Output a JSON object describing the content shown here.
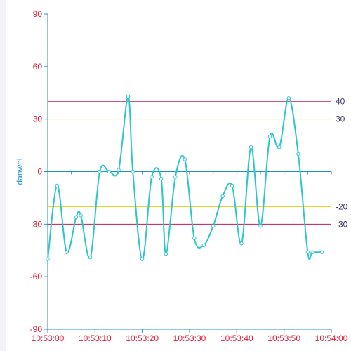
{
  "chart_data": {
    "type": "line",
    "title": "",
    "xlabel": "",
    "ylabel": "danwei",
    "x_range": [
      "10:53:00",
      "10:54:00"
    ],
    "x_ticks": [
      "10:53:00",
      "10:53:10",
      "10:53:20",
      "10:53:30",
      "10:53:40",
      "10:53:50",
      "10:54:00"
    ],
    "ylim": [
      -90,
      90
    ],
    "y_ticks": [
      -90,
      -60,
      -30,
      0,
      30,
      60,
      90
    ],
    "grid": false,
    "legend": "none",
    "series": [
      {
        "x": [
          "10:53:00",
          "10:53:02",
          "10:53:04",
          "10:53:06",
          "10:53:07",
          "10:53:09",
          "10:53:11",
          "10:53:13",
          "10:53:15",
          "10:53:17",
          "10:53:18",
          "10:53:20",
          "10:53:22",
          "10:53:24",
          "10:53:25",
          "10:53:27",
          "10:53:29",
          "10:53:31",
          "10:53:33",
          "10:53:35",
          "10:53:37",
          "10:53:39",
          "10:53:41",
          "10:53:43",
          "10:53:45",
          "10:53:47",
          "10:53:49",
          "10:53:51",
          "10:53:53",
          "10:53:55",
          "10:53:56",
          "10:53:58"
        ],
        "values": [
          -50,
          -8,
          -46,
          -26,
          -25,
          -49,
          0,
          0,
          1,
          43,
          0,
          -50,
          -3,
          -4,
          -47,
          -3,
          7,
          -38,
          -42,
          -31,
          -14,
          -8,
          -41,
          14,
          -31,
          20,
          14,
          42,
          10,
          -46,
          -46,
          -46
        ]
      }
    ],
    "reference_lines": [
      {
        "value": 40,
        "label": "40",
        "color": "#c2185b"
      },
      {
        "value": 30,
        "label": "30",
        "color": "#e6e600"
      },
      {
        "value": -20,
        "label": "-20",
        "color": "#e6d200"
      },
      {
        "value": -30,
        "label": "-30",
        "color": "#c2185b"
      }
    ],
    "colors": {
      "series": "#2ec7c9",
      "y_axis": "#1f8fd6",
      "x_axis": "#1f8fd6",
      "zero_line": "#1f8fd6",
      "y_tick_text": "#e3193a",
      "x_tick_text": "#e3193a",
      "ref_label_text": "#333366",
      "axis_title": "#1f8fd6"
    }
  }
}
